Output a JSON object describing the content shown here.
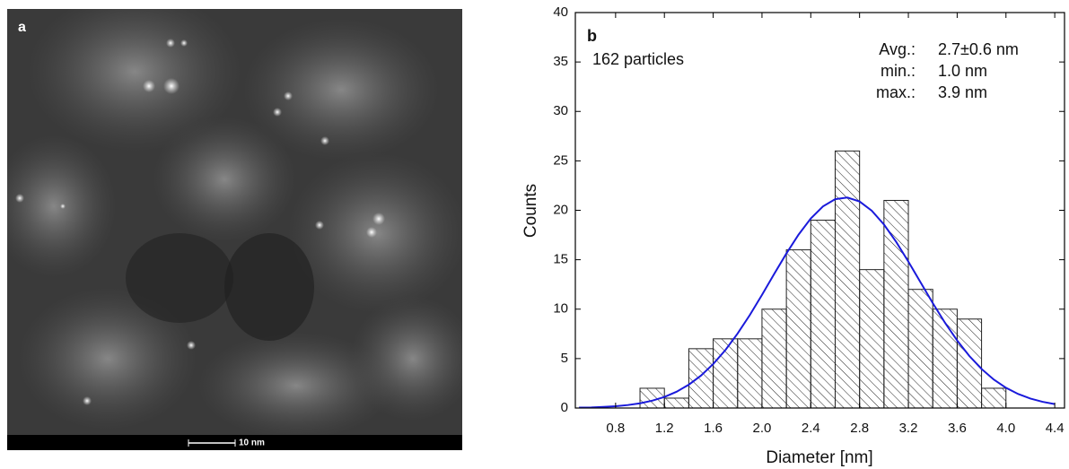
{
  "image_panel": {
    "label": "a",
    "scale_bar": "10 nm"
  },
  "chart_data": {
    "type": "histogram",
    "xlabel": "Diameter [nm]",
    "ylabel": "Counts",
    "bins": [
      1.0,
      1.2,
      1.4,
      1.6,
      1.8,
      2.0,
      2.2,
      2.4,
      2.6,
      2.8,
      3.0,
      3.2,
      3.4,
      3.6,
      3.8,
      4.0
    ],
    "counts": [
      2,
      1,
      6,
      7,
      7,
      10,
      16,
      19,
      26,
      14,
      21,
      12,
      10,
      9,
      2
    ],
    "bar_color": "#222222",
    "fit": {
      "color": "#1a1adb",
      "x": [
        0.5,
        0.6,
        0.7,
        0.8,
        0.9,
        1.0,
        1.1,
        1.2,
        1.3,
        1.4,
        1.5,
        1.6,
        1.7,
        1.8,
        1.9,
        2.0,
        2.1,
        2.2,
        2.3,
        2.4,
        2.5,
        2.6,
        2.7,
        2.8,
        2.9,
        3.0,
        3.1,
        3.2,
        3.3,
        3.4,
        3.5,
        3.6,
        3.7,
        3.8,
        3.9,
        4.0,
        4.1,
        4.2,
        4.3,
        4.4
      ],
      "values": [
        0.04,
        0.06,
        0.11,
        0.18,
        0.3,
        0.48,
        0.74,
        1.12,
        1.65,
        2.36,
        3.28,
        4.45,
        5.86,
        7.53,
        9.4,
        11.44,
        13.56,
        15.63,
        17.54,
        19.17,
        20.39,
        21.12,
        21.29,
        20.89,
        19.96,
        18.56,
        16.81,
        14.81,
        12.71,
        10.61,
        8.63,
        6.83,
        5.26,
        3.95,
        2.88,
        2.05,
        1.42,
        0.96,
        0.63,
        0.4
      ]
    },
    "xlim": [
      0.47,
      4.48
    ],
    "ylim": [
      0,
      40
    ],
    "xticks": [
      0.8,
      1.2,
      1.6,
      {
        "value": 2,
        "label": "2.0"
      },
      2.4,
      2.8,
      3.2,
      3.6,
      {
        "value": 4,
        "label": "4.0"
      },
      4.4
    ],
    "yticks": [
      0,
      5,
      10,
      15,
      20,
      25,
      30,
      35,
      40
    ],
    "annotations": {
      "panel_label": "b",
      "particles": "162 particles",
      "stats": [
        [
          "Avg.:",
          "2.7±0.6 nm"
        ],
        [
          "min.:",
          "1.0 nm"
        ],
        [
          "max.:",
          "3.9 nm"
        ]
      ]
    }
  }
}
